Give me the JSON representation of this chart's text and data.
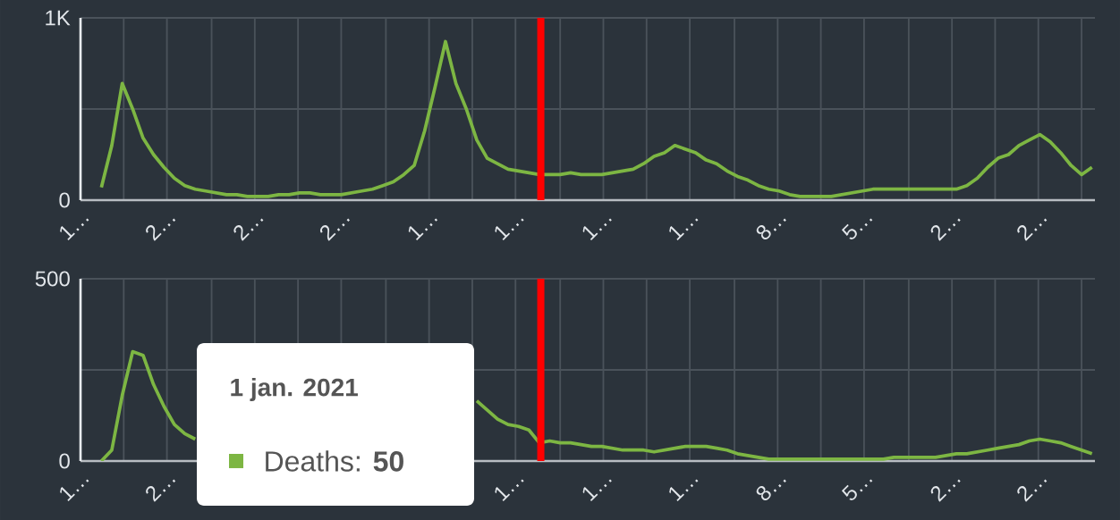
{
  "chart_data": [
    {
      "type": "line",
      "xlim": [
        "2020-02-27",
        "2022-01-08"
      ],
      "ylim": [
        0,
        1000
      ],
      "grid": true,
      "xticks": [
        {
          "value": "2020-02-27",
          "label": "1…"
        },
        {
          "value": "2020-03-27",
          "label": null
        },
        {
          "value": "2020-04-25",
          "label": "2…"
        },
        {
          "value": "2020-05-25",
          "label": null
        },
        {
          "value": "2020-06-23",
          "label": "2…"
        },
        {
          "value": "2020-07-22",
          "label": null
        },
        {
          "value": "2020-08-20",
          "label": "2…"
        },
        {
          "value": "2020-09-19",
          "label": null
        },
        {
          "value": "2020-10-18",
          "label": "1…"
        },
        {
          "value": "2020-11-16",
          "label": null
        },
        {
          "value": "2020-12-15",
          "label": "1…"
        },
        {
          "value": "2021-01-14",
          "label": null
        },
        {
          "value": "2021-02-12",
          "label": "1…"
        },
        {
          "value": "2021-03-13",
          "label": null
        },
        {
          "value": "2021-04-11",
          "label": "1…"
        },
        {
          "value": "2021-05-11",
          "label": null
        },
        {
          "value": "2021-06-09",
          "label": "8…"
        },
        {
          "value": "2021-07-08",
          "label": null
        },
        {
          "value": "2021-08-06",
          "label": "5…"
        },
        {
          "value": "2021-09-05",
          "label": null
        },
        {
          "value": "2021-10-04",
          "label": "2…"
        },
        {
          "value": "2021-11-02",
          "label": null
        },
        {
          "value": "2021-12-01",
          "label": "2…"
        },
        {
          "value": "2021-12-30",
          "label": null
        }
      ],
      "yticks": [
        0,
        {
          "value": 500,
          "label": null
        },
        {
          "value": 1000,
          "label": "1K"
        }
      ],
      "x": [
        "2020-03-12",
        "2020-03-19",
        "2020-03-26",
        "2020-04-02",
        "2020-04-09",
        "2020-04-16",
        "2020-04-23",
        "2020-04-30",
        "2020-05-07",
        "2020-05-14",
        "2020-05-21",
        "2020-05-28",
        "2020-06-04",
        "2020-06-11",
        "2020-06-18",
        "2020-06-25",
        "2020-07-02",
        "2020-07-09",
        "2020-07-16",
        "2020-07-23",
        "2020-07-30",
        "2020-08-06",
        "2020-08-13",
        "2020-08-20",
        "2020-08-27",
        "2020-09-03",
        "2020-09-10",
        "2020-09-17",
        "2020-09-24",
        "2020-10-01",
        "2020-10-08",
        "2020-10-15",
        "2020-10-22",
        "2020-10-29",
        "2020-11-05",
        "2020-11-12",
        "2020-11-19",
        "2020-11-26",
        "2020-12-03",
        "2020-12-10",
        "2020-12-17",
        "2020-12-24",
        "2020-12-31",
        "2021-01-07",
        "2021-01-14",
        "2021-01-21",
        "2021-01-28",
        "2021-02-04",
        "2021-02-11",
        "2021-02-18",
        "2021-02-25",
        "2021-03-04",
        "2021-03-11",
        "2021-03-18",
        "2021-03-25",
        "2021-04-01",
        "2021-04-08",
        "2021-04-15",
        "2021-04-22",
        "2021-04-29",
        "2021-05-06",
        "2021-05-13",
        "2021-05-20",
        "2021-05-27",
        "2021-06-03",
        "2021-06-10",
        "2021-06-17",
        "2021-06-24",
        "2021-07-01",
        "2021-07-08",
        "2021-07-15",
        "2021-07-22",
        "2021-07-29",
        "2021-08-05",
        "2021-08-12",
        "2021-08-19",
        "2021-08-26",
        "2021-09-02",
        "2021-09-09",
        "2021-09-16",
        "2021-09-23",
        "2021-09-30",
        "2021-10-07",
        "2021-10-14",
        "2021-10-21",
        "2021-10-28",
        "2021-11-04",
        "2021-11-11",
        "2021-11-18",
        "2021-11-25",
        "2021-12-02",
        "2021-12-09",
        "2021-12-16",
        "2021-12-23",
        "2021-12-30",
        "2022-01-06"
      ],
      "series": [
        {
          "color": "#7db643",
          "values": [
            70,
            300,
            640,
            500,
            340,
            250,
            180,
            120,
            80,
            60,
            50,
            40,
            30,
            30,
            20,
            20,
            20,
            30,
            30,
            40,
            40,
            30,
            30,
            30,
            40,
            50,
            60,
            80,
            100,
            140,
            190,
            380,
            620,
            870,
            640,
            500,
            330,
            230,
            200,
            170,
            160,
            150,
            140,
            140,
            140,
            150,
            140,
            140,
            140,
            150,
            160,
            170,
            200,
            240,
            260,
            300,
            280,
            260,
            220,
            200,
            160,
            130,
            110,
            80,
            60,
            50,
            30,
            20,
            20,
            20,
            20,
            30,
            40,
            50,
            60,
            60,
            60,
            60,
            60,
            60,
            60,
            60,
            60,
            80,
            120,
            180,
            230,
            250,
            300,
            330,
            360,
            320,
            260,
            190,
            140,
            180
          ]
        }
      ],
      "ref_lines": [
        {
          "axis": "x",
          "value": "2021-01-01",
          "color": "#ff0000"
        }
      ]
    },
    {
      "type": "line",
      "xlim": [
        "2020-02-27",
        "2022-01-08"
      ],
      "ylim": [
        0,
        500
      ],
      "grid": true,
      "xticks": [
        {
          "value": "2020-02-27",
          "label": "1…"
        },
        {
          "value": "2020-03-27",
          "label": null
        },
        {
          "value": "2020-04-25",
          "label": "2…"
        },
        {
          "value": "2020-05-25",
          "label": null
        },
        {
          "value": "2020-06-23",
          "label": null
        },
        {
          "value": "2020-07-22",
          "label": null
        },
        {
          "value": "2020-08-20",
          "label": null
        },
        {
          "value": "2020-09-19",
          "label": null
        },
        {
          "value": "2020-10-18",
          "label": null
        },
        {
          "value": "2020-11-16",
          "label": null
        },
        {
          "value": "2020-12-15",
          "label": "1…"
        },
        {
          "value": "2021-01-14",
          "label": null
        },
        {
          "value": "2021-02-12",
          "label": "1…"
        },
        {
          "value": "2021-03-13",
          "label": null
        },
        {
          "value": "2021-04-11",
          "label": "1…"
        },
        {
          "value": "2021-05-11",
          "label": null
        },
        {
          "value": "2021-06-09",
          "label": "8…"
        },
        {
          "value": "2021-07-08",
          "label": null
        },
        {
          "value": "2021-08-06",
          "label": "5…"
        },
        {
          "value": "2021-09-05",
          "label": null
        },
        {
          "value": "2021-10-04",
          "label": "2…"
        },
        {
          "value": "2021-11-02",
          "label": null
        },
        {
          "value": "2021-12-01",
          "label": "2…"
        },
        {
          "value": "2021-12-30",
          "label": null
        }
      ],
      "yticks": [
        0,
        {
          "value": 250,
          "label": null
        },
        500
      ],
      "x": [
        "2020-03-12",
        "2020-03-19",
        "2020-03-26",
        "2020-04-02",
        "2020-04-09",
        "2020-04-16",
        "2020-04-23",
        "2020-04-30",
        "2020-05-07",
        "2020-05-14",
        "2020-05-21",
        "2020-05-28",
        "2020-06-04",
        "2020-06-11",
        "2020-06-18",
        "2020-06-25",
        "2020-07-02",
        "2020-07-09",
        "2020-07-16",
        "2020-07-23",
        "2020-07-30",
        "2020-08-06",
        "2020-08-13",
        "2020-08-20",
        "2020-08-27",
        "2020-09-03",
        "2020-09-10",
        "2020-09-17",
        "2020-09-24",
        "2020-10-01",
        "2020-10-08",
        "2020-10-15",
        "2020-10-22",
        "2020-10-29",
        "2020-11-05",
        "2020-11-12",
        "2020-11-19",
        "2020-11-26",
        "2020-12-03",
        "2020-12-10",
        "2020-12-17",
        "2020-12-24",
        "2020-12-31",
        "2021-01-07",
        "2021-01-14",
        "2021-01-21",
        "2021-01-28",
        "2021-02-04",
        "2021-02-11",
        "2021-02-18",
        "2021-02-25",
        "2021-03-04",
        "2021-03-11",
        "2021-03-18",
        "2021-03-25",
        "2021-04-01",
        "2021-04-08",
        "2021-04-15",
        "2021-04-22",
        "2021-04-29",
        "2021-05-06",
        "2021-05-13",
        "2021-05-20",
        "2021-05-27",
        "2021-06-03",
        "2021-06-10",
        "2021-06-17",
        "2021-06-24",
        "2021-07-01",
        "2021-07-08",
        "2021-07-15",
        "2021-07-22",
        "2021-07-29",
        "2021-08-05",
        "2021-08-12",
        "2021-08-19",
        "2021-08-26",
        "2021-09-02",
        "2021-09-09",
        "2021-09-16",
        "2021-09-23",
        "2021-09-30",
        "2021-10-07",
        "2021-10-14",
        "2021-10-21",
        "2021-10-28",
        "2021-11-04",
        "2021-11-11",
        "2021-11-18",
        "2021-11-25",
        "2021-12-02",
        "2021-12-09",
        "2021-12-16",
        "2021-12-23",
        "2021-12-30",
        "2022-01-06"
      ],
      "series": [
        {
          "color": "#7db643",
          "values": [
            0,
            30,
            180,
            300,
            290,
            210,
            150,
            100,
            75,
            60,
            null,
            null,
            null,
            null,
            null,
            null,
            null,
            null,
            null,
            null,
            null,
            null,
            null,
            null,
            null,
            null,
            null,
            null,
            null,
            null,
            null,
            null,
            null,
            null,
            null,
            null,
            165,
            140,
            115,
            100,
            95,
            85,
            50,
            55,
            50,
            50,
            45,
            40,
            40,
            35,
            30,
            30,
            30,
            25,
            30,
            35,
            40,
            40,
            40,
            35,
            30,
            20,
            15,
            10,
            5,
            5,
            5,
            5,
            5,
            5,
            5,
            5,
            5,
            5,
            5,
            5,
            10,
            10,
            10,
            10,
            10,
            15,
            20,
            20,
            25,
            30,
            35,
            40,
            45,
            55,
            60,
            55,
            50,
            40,
            30,
            20
          ]
        }
      ],
      "ref_lines": [
        {
          "axis": "x",
          "value": "2021-01-01",
          "color": "#ff0000"
        }
      ],
      "annotations": [
        "1 jan. 2021",
        "Deaths: **50**"
      ]
    }
  ]
}
